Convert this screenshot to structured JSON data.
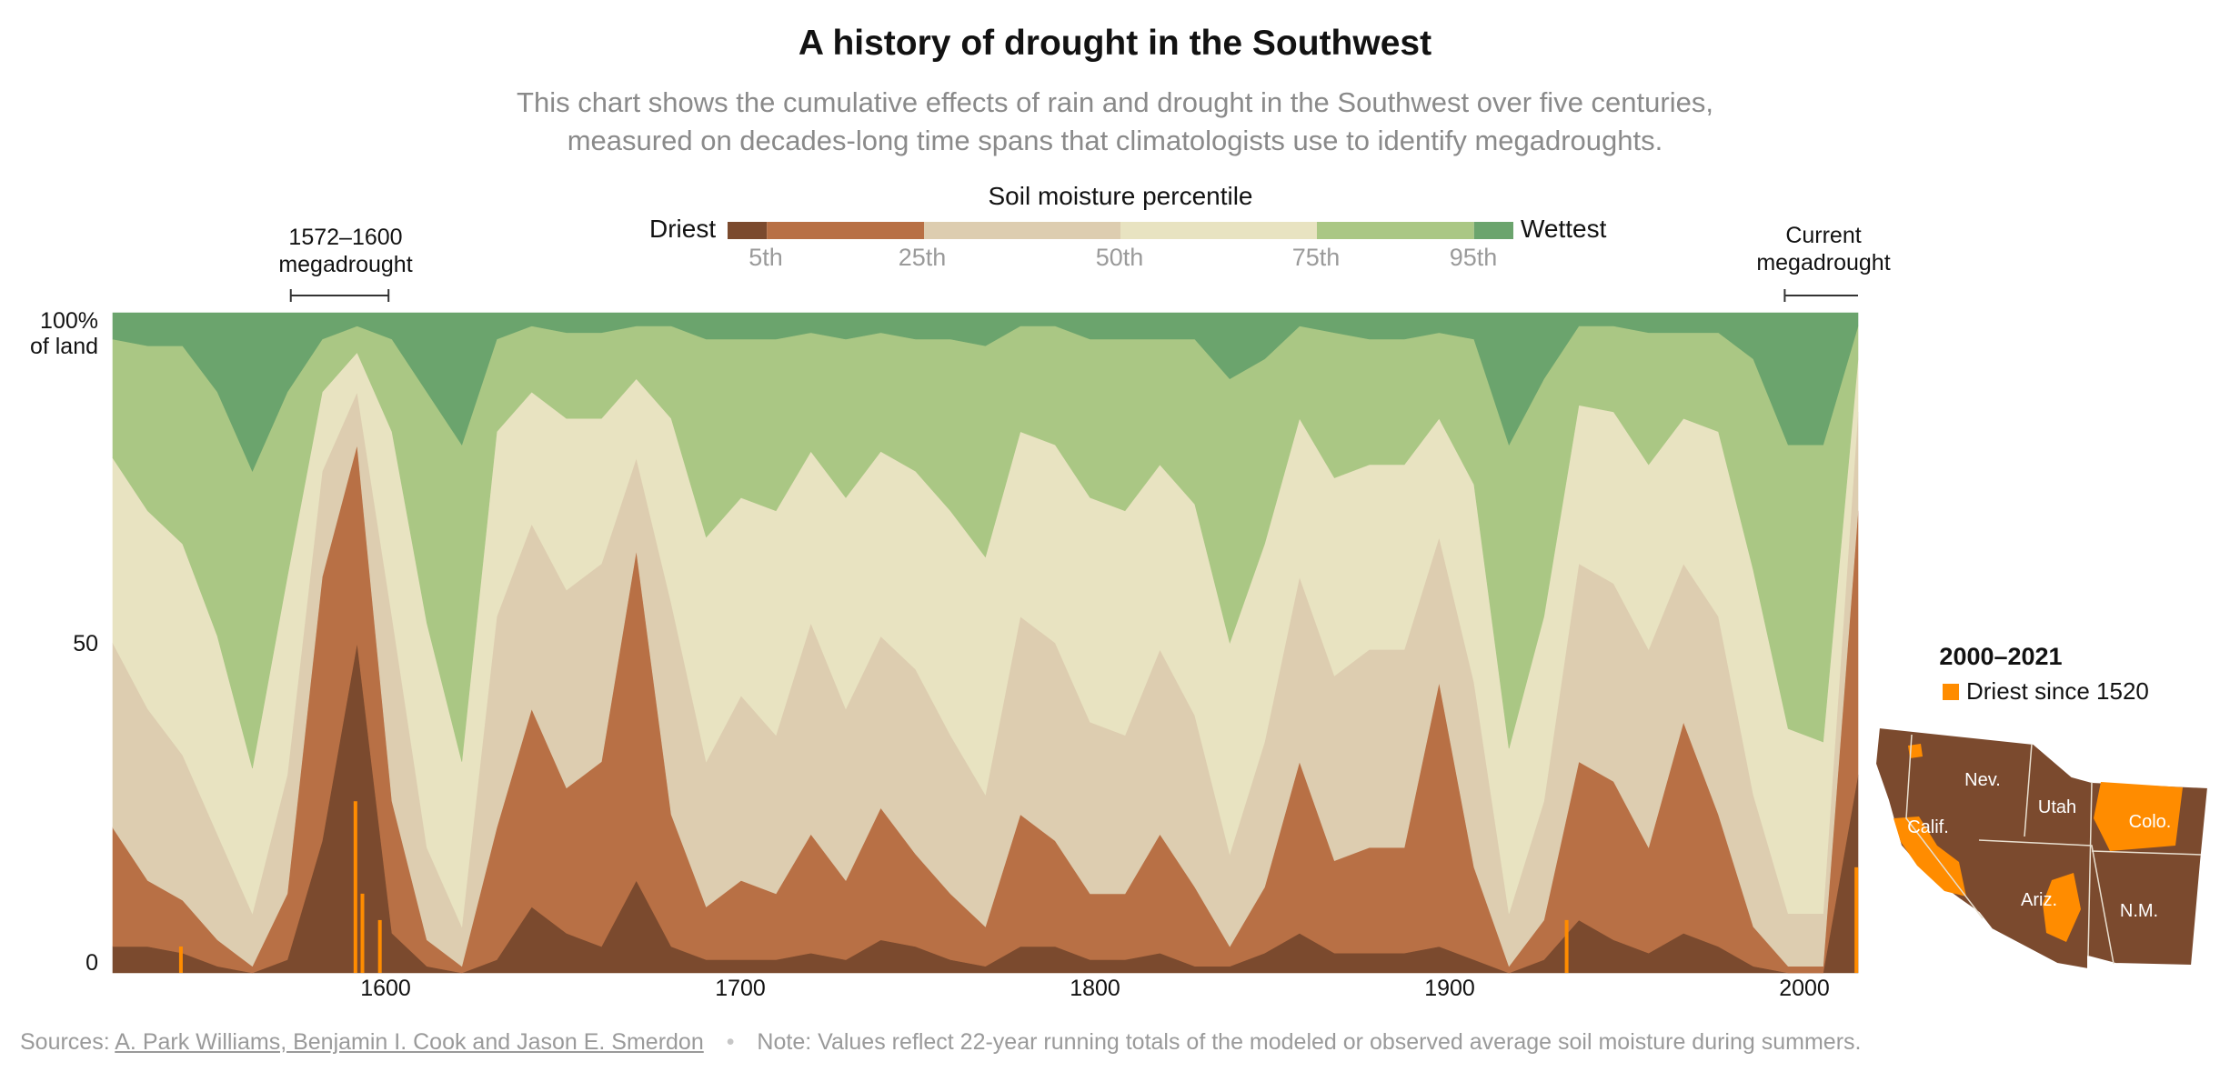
{
  "header": {
    "title": "A history of drought in the Southwest",
    "subtitle_line1": "This chart shows the cumulative effects of rain and drought in the Southwest over five centuries,",
    "subtitle_line2": "measured on decades-long time spans that climatologists use to identify megadroughts."
  },
  "legend": {
    "title": "Soil moisture percentile",
    "left_label": "Driest",
    "right_label": "Wettest",
    "ticks": [
      "5th",
      "25th",
      "50th",
      "75th",
      "95th"
    ],
    "bands": [
      {
        "from": 0,
        "to": 5,
        "color": "#7b4a2e"
      },
      {
        "from": 5,
        "to": 25,
        "color": "#b87045"
      },
      {
        "from": 25,
        "to": 50,
        "color": "#ddcdb0"
      },
      {
        "from": 50,
        "to": 75,
        "color": "#e8e3c1"
      },
      {
        "from": 75,
        "to": 95,
        "color": "#aac784"
      },
      {
        "from": 95,
        "to": 100,
        "color": "#6ba46d"
      }
    ]
  },
  "annotations": {
    "megadrought_1572_line1": "1572–1600",
    "megadrought_1572_line2": "megadrought",
    "current_line1": "Current",
    "current_line2": "megadrought"
  },
  "axes": {
    "y_top_line1": "100%",
    "y_top_line2": "of land",
    "y_mid": "50",
    "y_zero": "0",
    "x_ticks": [
      "1600",
      "1700",
      "1800",
      "1900",
      "2000"
    ]
  },
  "inset": {
    "title": "2000–2021",
    "legend_label": "Driest since 1520",
    "highlight_color": "#ff8c00",
    "base_color": "#7b4a2e",
    "states": [
      "Calif.",
      "Nev.",
      "Utah",
      "Colo.",
      "Ariz.",
      "N.M."
    ]
  },
  "footer": {
    "sources_prefix": "Sources:",
    "sources_link": "A. Park Williams, Benjamin I. Cook and Jason E. Smerdon",
    "separator": "•",
    "note": "Note: Values reflect 22-year running totals of the modeled or observed average soil moisture during summers."
  },
  "chart_data": {
    "type": "area",
    "stacked": true,
    "x_range": [
      1521,
      2021
    ],
    "ylim": [
      0,
      100
    ],
    "y_unit": "% of land",
    "highlight_periods": [
      [
        1572,
        1600
      ],
      [
        2000,
        2021
      ]
    ],
    "categories": [
      "<5th",
      "5th–25th",
      "25th–50th",
      "50th–75th",
      "75th–95th",
      ">95th"
    ],
    "x": [
      1521,
      1531,
      1541,
      1551,
      1561,
      1571,
      1581,
      1591,
      1601,
      1611,
      1621,
      1631,
      1641,
      1651,
      1661,
      1671,
      1681,
      1691,
      1701,
      1711,
      1721,
      1731,
      1741,
      1751,
      1761,
      1771,
      1781,
      1791,
      1801,
      1811,
      1821,
      1831,
      1841,
      1851,
      1861,
      1871,
      1881,
      1891,
      1901,
      1911,
      1921,
      1931,
      1941,
      1951,
      1961,
      1971,
      1981,
      1991,
      2001,
      2011,
      2021
    ],
    "series": [
      {
        "values": [
          4,
          4,
          3,
          1,
          0,
          2,
          20,
          50,
          6,
          1,
          0,
          2,
          10,
          6,
          4,
          14,
          4,
          2,
          2,
          2,
          3,
          2,
          5,
          4,
          2,
          1,
          4,
          4,
          2,
          2,
          3,
          1,
          1,
          3,
          6,
          3,
          3,
          3,
          4,
          2,
          0,
          2,
          8,
          5,
          3,
          6,
          4,
          1,
          0,
          0,
          30
        ]
      },
      {
        "values": [
          18,
          10,
          8,
          4,
          1,
          10,
          40,
          30,
          20,
          4,
          1,
          20,
          30,
          22,
          28,
          50,
          20,
          8,
          12,
          10,
          18,
          12,
          20,
          14,
          10,
          6,
          20,
          16,
          10,
          10,
          18,
          12,
          3,
          10,
          26,
          14,
          16,
          16,
          40,
          14,
          1,
          6,
          24,
          24,
          16,
          32,
          20,
          6,
          1,
          1,
          40
        ]
      },
      {
        "values": [
          28,
          26,
          22,
          16,
          8,
          18,
          16,
          8,
          28,
          14,
          6,
          32,
          28,
          30,
          30,
          14,
          32,
          22,
          28,
          24,
          32,
          26,
          26,
          28,
          24,
          20,
          30,
          30,
          26,
          24,
          28,
          26,
          14,
          22,
          28,
          28,
          30,
          30,
          22,
          28,
          8,
          18,
          30,
          30,
          30,
          24,
          30,
          20,
          8,
          8,
          15
        ]
      },
      {
        "values": [
          28,
          30,
          32,
          30,
          22,
          30,
          12,
          6,
          28,
          34,
          25,
          28,
          20,
          26,
          22,
          12,
          28,
          34,
          30,
          34,
          26,
          32,
          28,
          30,
          34,
          36,
          28,
          30,
          34,
          34,
          28,
          32,
          32,
          30,
          24,
          30,
          28,
          28,
          18,
          30,
          25,
          28,
          24,
          26,
          28,
          22,
          28,
          34,
          28,
          26,
          8
        ]
      },
      {
        "values": [
          18,
          25,
          30,
          37,
          45,
          28,
          8,
          4,
          14,
          35,
          48,
          14,
          10,
          13,
          13,
          8,
          14,
          30,
          24,
          26,
          18,
          24,
          18,
          20,
          26,
          32,
          16,
          18,
          24,
          26,
          19,
          25,
          40,
          28,
          14,
          22,
          19,
          19,
          13,
          22,
          46,
          36,
          12,
          13,
          20,
          13,
          15,
          32,
          43,
          45,
          5
        ]
      },
      {
        "values": [
          4,
          5,
          5,
          12,
          24,
          12,
          4,
          2,
          4,
          12,
          20,
          4,
          2,
          3,
          3,
          2,
          2,
          4,
          4,
          4,
          3,
          4,
          3,
          4,
          4,
          5,
          2,
          2,
          4,
          4,
          4,
          4,
          10,
          7,
          2,
          3,
          4,
          4,
          3,
          4,
          20,
          10,
          2,
          2,
          3,
          3,
          3,
          7,
          20,
          20,
          2
        ]
      }
    ]
  }
}
